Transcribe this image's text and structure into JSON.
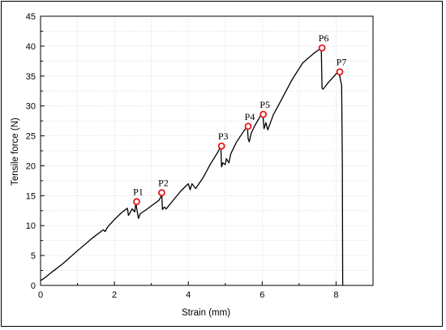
{
  "chart_data": {
    "type": "line",
    "xlabel": "Strain (mm)",
    "ylabel": "Tensile force (N)",
    "xlim": [
      0,
      9
    ],
    "ylim": [
      0,
      45
    ],
    "x_ticks": [
      0,
      2,
      4,
      6,
      8
    ],
    "y_ticks": [
      0,
      5,
      10,
      15,
      20,
      25,
      30,
      35,
      40,
      45
    ],
    "grid": true,
    "line_color": "#000000",
    "marker_color": "#e31a1c",
    "series": [
      {
        "x": [
          0,
          0.1,
          0.3,
          0.6,
          1.0,
          1.4,
          1.7,
          1.75,
          1.8,
          1.85,
          2.0,
          2.2,
          2.35,
          2.38,
          2.42,
          2.48,
          2.55,
          2.58,
          2.62,
          2.65,
          2.7,
          2.85,
          3.0,
          3.2,
          3.25,
          3.28,
          3.3,
          3.35,
          3.4,
          3.6,
          3.8,
          4.0,
          4.05,
          4.1,
          4.2,
          4.4,
          4.6,
          4.8,
          4.88,
          4.9,
          4.93,
          5.0,
          5.03,
          5.1,
          5.15,
          5.3,
          5.5,
          5.6,
          5.62,
          5.65,
          5.7,
          5.8,
          5.95,
          6.02,
          6.05,
          6.1,
          6.15,
          6.2,
          6.3,
          6.5,
          6.8,
          7.1,
          7.4,
          7.6,
          7.62,
          7.65,
          7.7,
          7.8,
          7.95,
          8.05,
          8.1,
          8.12,
          8.15,
          8.17,
          8.18
        ],
        "y": [
          0.8,
          1.2,
          2.2,
          3.6,
          5.8,
          7.9,
          9.3,
          9.0,
          9.6,
          10.0,
          11.0,
          12.2,
          12.9,
          11.7,
          12.1,
          12.8,
          12.3,
          13.8,
          12.2,
          11.2,
          12.0,
          12.6,
          13.3,
          14.2,
          14.7,
          15.5,
          12.7,
          13.1,
          12.8,
          14.3,
          15.8,
          17.0,
          16.0,
          17.0,
          16.2,
          18.0,
          20.3,
          22.3,
          23.3,
          19.8,
          20.5,
          20.2,
          21.2,
          20.5,
          22.0,
          23.9,
          25.8,
          26.6,
          24.5,
          24.0,
          25.4,
          26.7,
          28.3,
          28.5,
          26.2,
          27.2,
          26.0,
          26.8,
          28.5,
          30.8,
          34.3,
          37.2,
          38.8,
          39.7,
          33.0,
          32.8,
          33.2,
          34.0,
          35.0,
          35.7,
          35.0,
          34.3,
          33.5,
          20.0,
          0.0
        ]
      }
    ],
    "peaks": [
      {
        "label": "P1",
        "x": 2.6,
        "y": 14.0
      },
      {
        "label": "P2",
        "x": 3.28,
        "y": 15.5
      },
      {
        "label": "P3",
        "x": 4.9,
        "y": 23.3
      },
      {
        "label": "P4",
        "x": 5.62,
        "y": 26.6
      },
      {
        "label": "P5",
        "x": 6.03,
        "y": 28.6
      },
      {
        "label": "P6",
        "x": 7.62,
        "y": 39.7
      },
      {
        "label": "P7",
        "x": 8.1,
        "y": 35.7
      }
    ]
  }
}
